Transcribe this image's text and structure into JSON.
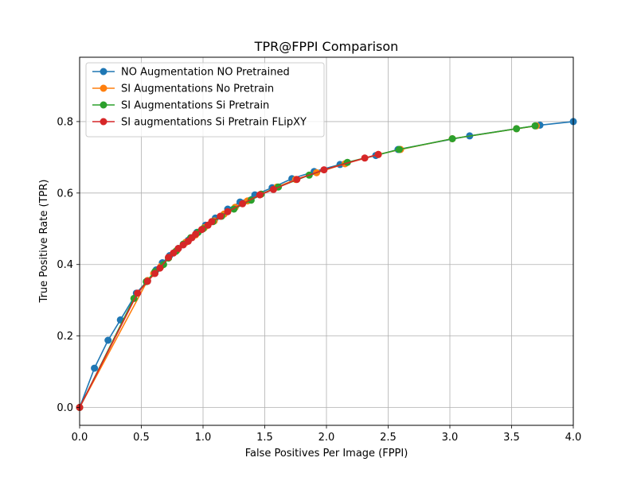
{
  "chart_data": {
    "type": "line",
    "title": "TPR@FPPI Comparison",
    "xlabel": "False Positives Per Image (FPPI)",
    "ylabel": "True Positive Rate (TPR)",
    "xlim": [
      0.0,
      4.0
    ],
    "ylim": [
      -0.05,
      0.98
    ],
    "xticks": [
      0.0,
      0.5,
      1.0,
      1.5,
      2.0,
      2.5,
      3.0,
      3.5,
      4.0
    ],
    "xtick_labels": [
      "0.0",
      "0.5",
      "1.0",
      "1.5",
      "2.0",
      "2.5",
      "3.0",
      "3.5",
      "4.0"
    ],
    "yticks": [
      0.0,
      0.2,
      0.4,
      0.6,
      0.8
    ],
    "ytick_labels": [
      "0.0",
      "0.2",
      "0.4",
      "0.6",
      "0.8"
    ],
    "grid": true,
    "legend_position": "top-left",
    "series": [
      {
        "name": "NO Augmentation NO Pretrained",
        "color": "#1f77b4",
        "x": [
          0.0,
          0.12,
          0.23,
          0.33,
          0.46,
          0.55,
          0.62,
          0.67,
          0.73,
          0.8,
          0.88,
          0.95,
          1.02,
          1.1,
          1.2,
          1.3,
          1.42,
          1.56,
          1.72,
          1.9,
          2.11,
          2.4,
          2.58,
          3.16,
          3.73,
          4.0
        ],
        "y": [
          0.0,
          0.11,
          0.188,
          0.245,
          0.32,
          0.355,
          0.385,
          0.405,
          0.425,
          0.445,
          0.468,
          0.49,
          0.51,
          0.53,
          0.555,
          0.575,
          0.595,
          0.615,
          0.64,
          0.66,
          0.68,
          0.705,
          0.722,
          0.76,
          0.79,
          0.8
        ]
      },
      {
        "name": "SI Augmentations No Pretrain",
        "color": "#ff7f0e",
        "x": [
          0.0,
          0.55,
          0.6,
          0.66,
          0.72,
          0.79,
          0.86,
          0.94,
          1.01,
          1.09,
          1.17,
          1.26,
          1.36,
          1.47,
          1.6,
          1.75,
          1.92,
          2.15,
          2.42,
          2.6,
          3.02,
          3.54,
          3.7
        ],
        "y": [
          0.0,
          0.355,
          0.375,
          0.395,
          0.418,
          0.44,
          0.462,
          0.483,
          0.503,
          0.522,
          0.541,
          0.56,
          0.578,
          0.597,
          0.617,
          0.638,
          0.657,
          0.682,
          0.708,
          0.722,
          0.752,
          0.78,
          0.788
        ]
      },
      {
        "name": "SI Augmentations Si Pretrain",
        "color": "#2ca02c",
        "x": [
          0.0,
          0.44,
          0.54,
          0.61,
          0.68,
          0.72,
          0.78,
          0.84,
          0.9,
          0.96,
          1.0,
          1.08,
          1.15,
          1.25,
          1.39,
          1.47,
          1.61,
          1.86,
          2.17,
          2.59,
          3.02,
          3.54,
          3.69
        ],
        "y": [
          0.0,
          0.305,
          0.352,
          0.38,
          0.4,
          0.418,
          0.437,
          0.457,
          0.475,
          0.49,
          0.5,
          0.52,
          0.535,
          0.555,
          0.58,
          0.597,
          0.617,
          0.65,
          0.686,
          0.722,
          0.752,
          0.78,
          0.788
        ]
      },
      {
        "name": "SI augmentations Si Pretrain FLipXY",
        "color": "#d62728",
        "x": [
          0.0,
          0.47,
          0.55,
          0.61,
          0.65,
          0.72,
          0.76,
          0.8,
          0.84,
          0.88,
          0.91,
          0.94,
          0.99,
          1.04,
          1.07,
          1.14,
          1.2,
          1.32,
          1.46,
          1.57,
          1.76,
          1.98,
          2.31,
          2.42
        ],
        "y": [
          0.0,
          0.32,
          0.353,
          0.375,
          0.39,
          0.42,
          0.432,
          0.445,
          0.455,
          0.465,
          0.475,
          0.485,
          0.498,
          0.51,
          0.52,
          0.535,
          0.548,
          0.57,
          0.595,
          0.61,
          0.638,
          0.665,
          0.698,
          0.708
        ]
      }
    ]
  }
}
